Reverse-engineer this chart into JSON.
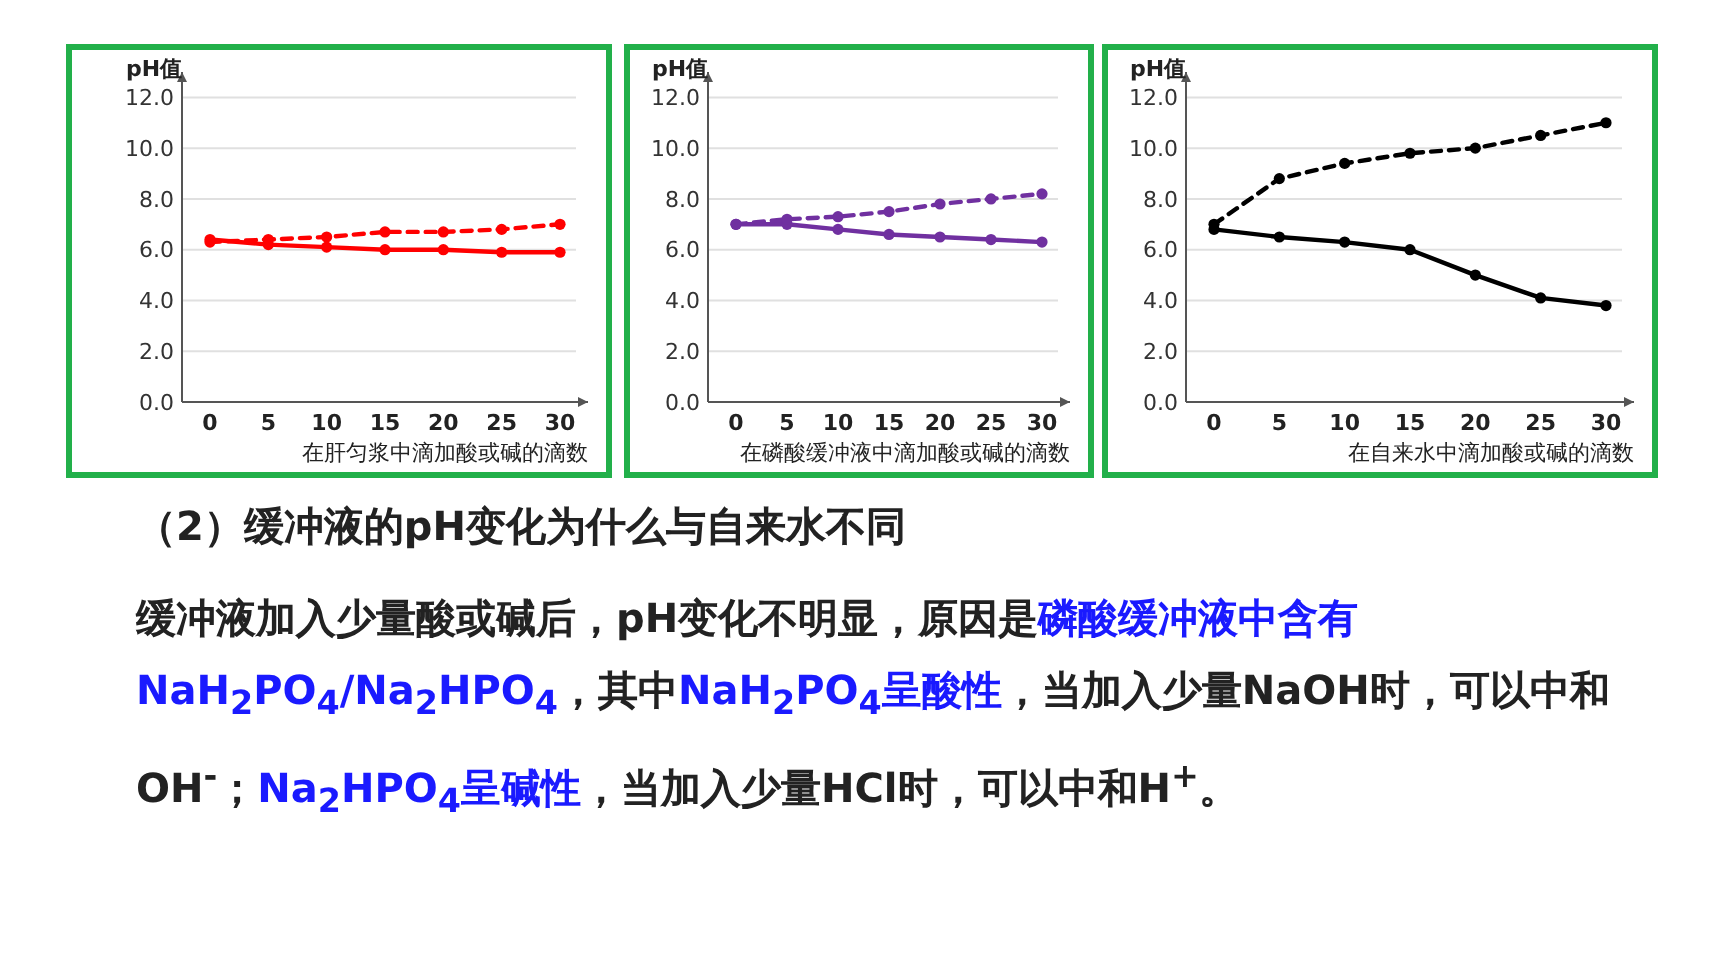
{
  "chart_data": [
    {
      "type": "line",
      "ylabel": "pH值",
      "xlabel": "在肝匀浆中滴加酸或碱的滴数",
      "categories": [
        "0",
        "5",
        "10",
        "15",
        "20",
        "25",
        "30"
      ],
      "ylim": [
        0,
        13
      ],
      "yticks": [
        {
          "value": 0,
          "label": "0.0"
        },
        {
          "value": 2,
          "label": "2.0"
        },
        {
          "value": 4,
          "label": "4.0"
        },
        {
          "value": 6,
          "label": "6.0"
        },
        {
          "value": 8,
          "label": "8.0"
        },
        {
          "value": 10,
          "label": "10.0"
        },
        {
          "value": 12,
          "label": "12.0"
        }
      ],
      "grid": "y",
      "marker": "circle",
      "series": [
        {
          "color": "#ff0000",
          "line_style": "solid",
          "values": [
            6.4,
            6.2,
            6.1,
            6.0,
            6.0,
            5.9,
            5.9
          ]
        },
        {
          "color": "#ff0000",
          "line_style": "dashed",
          "values": [
            6.3,
            6.4,
            6.5,
            6.7,
            6.7,
            6.8,
            7.0
          ]
        }
      ]
    },
    {
      "type": "line",
      "ylabel": "pH值",
      "xlabel": "在磷酸缓冲液中滴加酸或碱的滴数",
      "categories": [
        "0",
        "5",
        "10",
        "15",
        "20",
        "25",
        "30"
      ],
      "ylim": [
        0,
        13
      ],
      "yticks": [
        {
          "value": 0,
          "label": "0.0"
        },
        {
          "value": 2,
          "label": "2.0"
        },
        {
          "value": 4,
          "label": "4.0"
        },
        {
          "value": 6,
          "label": "6.0"
        },
        {
          "value": 8,
          "label": "8.0"
        },
        {
          "value": 10,
          "label": "10.0"
        },
        {
          "value": 12,
          "label": "12.0"
        }
      ],
      "grid": "y",
      "marker": "circle",
      "series": [
        {
          "color": "#7030a0",
          "line_style": "solid",
          "values": [
            7.0,
            7.0,
            6.8,
            6.6,
            6.5,
            6.4,
            6.3
          ]
        },
        {
          "color": "#7030a0",
          "line_style": "dashed",
          "values": [
            7.0,
            7.2,
            7.3,
            7.5,
            7.8,
            8.0,
            8.2
          ]
        }
      ]
    },
    {
      "type": "line",
      "ylabel": "pH值",
      "xlabel": "在自来水中滴加酸或碱的滴数",
      "categories": [
        "0",
        "5",
        "10",
        "15",
        "20",
        "25",
        "30"
      ],
      "ylim": [
        0,
        13
      ],
      "yticks": [
        {
          "value": 0,
          "label": "0.0"
        },
        {
          "value": 2,
          "label": "2.0"
        },
        {
          "value": 4,
          "label": "4.0"
        },
        {
          "value": 6,
          "label": "6.0"
        },
        {
          "value": 8,
          "label": "8.0"
        },
        {
          "value": 10,
          "label": "10.0"
        },
        {
          "value": 12,
          "label": "12.0"
        }
      ],
      "grid": "y",
      "marker": "circle",
      "series": [
        {
          "color": "#000000",
          "line_style": "solid",
          "values": [
            6.8,
            6.5,
            6.3,
            6.0,
            5.0,
            4.1,
            3.8
          ]
        },
        {
          "color": "#000000",
          "line_style": "dashed",
          "values": [
            7.0,
            8.8,
            9.4,
            9.8,
            10.0,
            10.5,
            11.0
          ]
        }
      ]
    },
    {
      "type": "other",
      "title": "（2）缓冲液的pH变化为什么与自来水不同",
      "annotations": [
        "缓冲液加入少量酸或碱后，pH变化不明显，原因是",
        "磷酸缓冲液中含有NaH$_{2}$PO$_{4}$/Na$_{2}$HPO$_{4}$",
        "，其中",
        "NaH$_{2}$PO$_{4}$呈酸性",
        "，当加入少量NaOH时，可以中和OH$^{-}$；",
        "Na$_{2}$HPO$_{4}$呈碱性",
        "，当加入少量HCl时，可以中和H$^{+}$。"
      ]
    }
  ]
}
